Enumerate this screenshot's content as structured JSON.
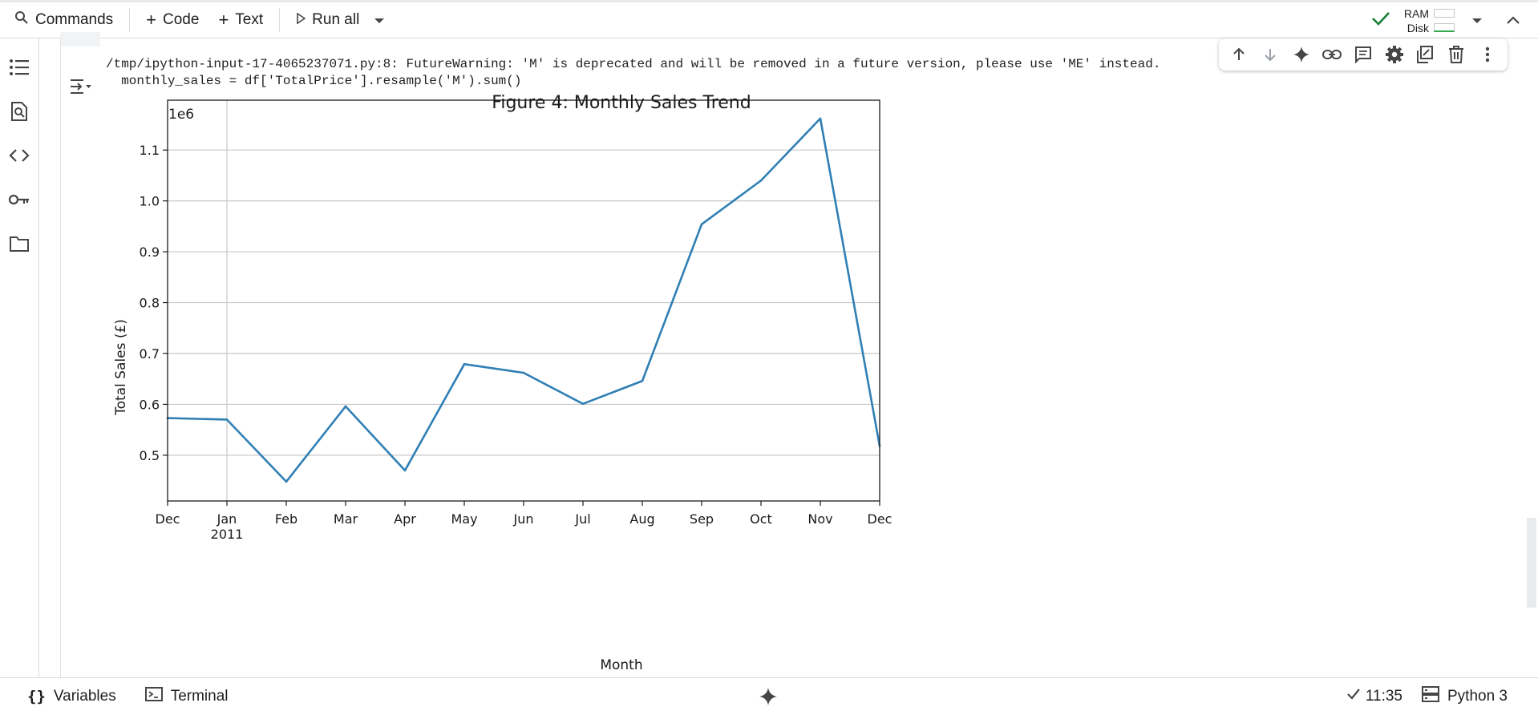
{
  "toolbar": {
    "commands_label": "Commands",
    "code_label": "Code",
    "text_label": "Text",
    "run_all_label": "Run all",
    "ram_label": "RAM",
    "disk_label": "Disk"
  },
  "output": {
    "warning_line1": "/tmp/ipython-input-17-4065237071.py:8: FutureWarning: 'M' is deprecated and will be removed in a future version, please use 'ME' instead.",
    "warning_line2": "  monthly_sales = df['TotalPrice'].resample('M').sum()"
  },
  "statusbar": {
    "variables_label": "Variables",
    "terminal_label": "Terminal",
    "time_label": "11:35",
    "runtime_label": "Python 3"
  },
  "colors": {
    "line": "#2f7fb5",
    "accent_check": "#188038",
    "icon": "#444746"
  },
  "chart_data": {
    "type": "line",
    "title": "Figure 4: Monthly Sales Trend",
    "xlabel": "Month",
    "ylabel": "Total Sales (£)",
    "y_scale_label": "1e6",
    "categories": [
      "Dec",
      "Jan",
      "Feb",
      "Mar",
      "Apr",
      "May",
      "Jun",
      "Jul",
      "Aug",
      "Sep",
      "Oct",
      "Nov",
      "Dec"
    ],
    "year_label": "2011",
    "values": [
      0.573,
      0.57,
      0.448,
      0.596,
      0.47,
      0.679,
      0.662,
      0.601,
      0.646,
      0.954,
      1.04,
      1.162,
      0.518
    ],
    "yticks": [
      0.5,
      0.6,
      0.7,
      0.8,
      0.9,
      1.0,
      1.1
    ],
    "ytick_labels": [
      "0.5",
      "0.6",
      "0.7",
      "0.8",
      "0.9",
      "1.0",
      "1.1"
    ],
    "ylim": [
      0.41,
      1.198
    ],
    "grid": true,
    "legend": false
  }
}
